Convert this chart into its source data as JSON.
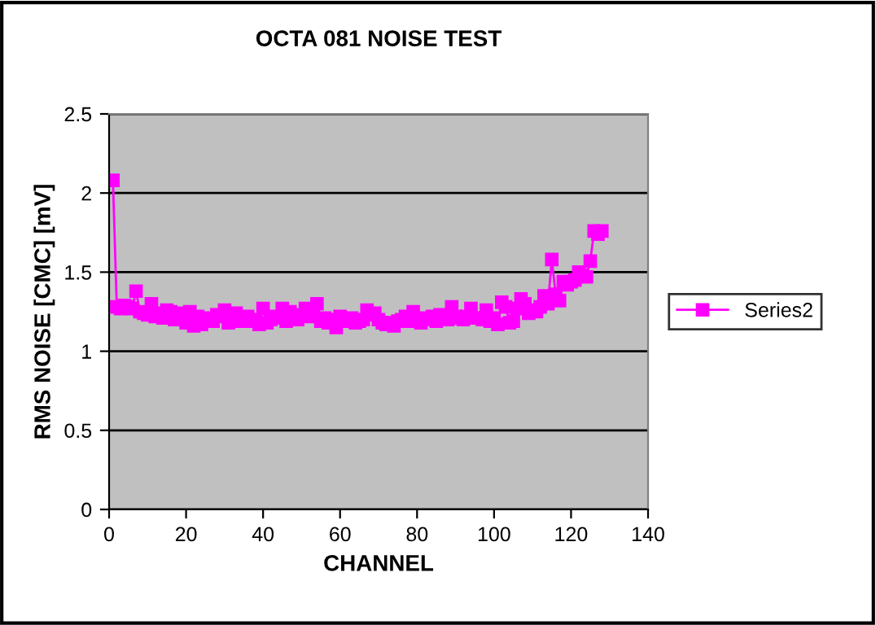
{
  "chart_data": {
    "type": "line",
    "title": "OCTA 081 NOISE TEST",
    "xlabel": "CHANNEL",
    "ylabel": "RMS NOISE [CMC] [mV]",
    "xlim": [
      0,
      140
    ],
    "xticks": [
      0,
      20,
      40,
      60,
      80,
      100,
      120,
      140
    ],
    "ylim": [
      0,
      2.5
    ],
    "yticks": [
      0,
      0.5,
      1,
      1.5,
      2,
      2.5
    ],
    "grid": "y",
    "legend": "right",
    "marker": "square",
    "line_style": "solid",
    "x": [
      1,
      2,
      3,
      4,
      5,
      6,
      7,
      8,
      9,
      10,
      11,
      12,
      13,
      14,
      15,
      16,
      17,
      18,
      19,
      20,
      21,
      22,
      23,
      24,
      25,
      26,
      27,
      28,
      29,
      30,
      31,
      32,
      33,
      34,
      35,
      36,
      37,
      38,
      39,
      40,
      41,
      42,
      43,
      44,
      45,
      46,
      47,
      48,
      49,
      50,
      51,
      52,
      53,
      54,
      55,
      56,
      57,
      58,
      59,
      60,
      61,
      62,
      63,
      64,
      65,
      66,
      67,
      68,
      69,
      70,
      71,
      72,
      73,
      74,
      75,
      76,
      77,
      78,
      79,
      80,
      81,
      82,
      83,
      84,
      85,
      86,
      87,
      88,
      89,
      90,
      91,
      92,
      93,
      94,
      95,
      96,
      97,
      98,
      99,
      100,
      101,
      102,
      103,
      104,
      105,
      106,
      107,
      108,
      109,
      110,
      111,
      112,
      113,
      114,
      115,
      116,
      117,
      118,
      119,
      120,
      121,
      122,
      123,
      124,
      125,
      126,
      127,
      128
    ],
    "series": [
      {
        "name": "Series2",
        "color": "#ff00ff",
        "values": [
          2.08,
          1.28,
          1.27,
          1.29,
          1.28,
          1.27,
          1.38,
          1.25,
          1.24,
          1.23,
          1.3,
          1.22,
          1.24,
          1.21,
          1.26,
          1.25,
          1.2,
          1.22,
          1.24,
          1.18,
          1.25,
          1.16,
          1.22,
          1.17,
          1.21,
          1.2,
          1.19,
          1.23,
          1.22,
          1.26,
          1.18,
          1.21,
          1.24,
          1.19,
          1.2,
          1.22,
          1.19,
          1.2,
          1.17,
          1.27,
          1.18,
          1.2,
          1.22,
          1.21,
          1.27,
          1.19,
          1.25,
          1.22,
          1.2,
          1.23,
          1.27,
          1.22,
          1.24,
          1.3,
          1.19,
          1.21,
          1.18,
          1.2,
          1.15,
          1.22,
          1.19,
          1.2,
          1.21,
          1.18,
          1.19,
          1.2,
          1.26,
          1.23,
          1.24,
          1.2,
          1.18,
          1.17,
          1.18,
          1.16,
          1.19,
          1.2,
          1.22,
          1.19,
          1.25,
          1.2,
          1.18,
          1.21,
          1.2,
          1.22,
          1.19,
          1.23,
          1.21,
          1.2,
          1.28,
          1.22,
          1.21,
          1.2,
          1.22,
          1.27,
          1.21,
          1.21,
          1.2,
          1.26,
          1.19,
          1.21,
          1.17,
          1.31,
          1.28,
          1.18,
          1.19,
          1.27,
          1.33,
          1.3,
          1.24,
          1.26,
          1.25,
          1.28,
          1.35,
          1.3,
          1.58,
          1.36,
          1.32,
          1.44,
          1.42,
          1.44,
          1.45,
          1.5,
          1.48,
          1.47,
          1.57,
          1.76,
          1.74,
          1.76
        ]
      }
    ]
  }
}
